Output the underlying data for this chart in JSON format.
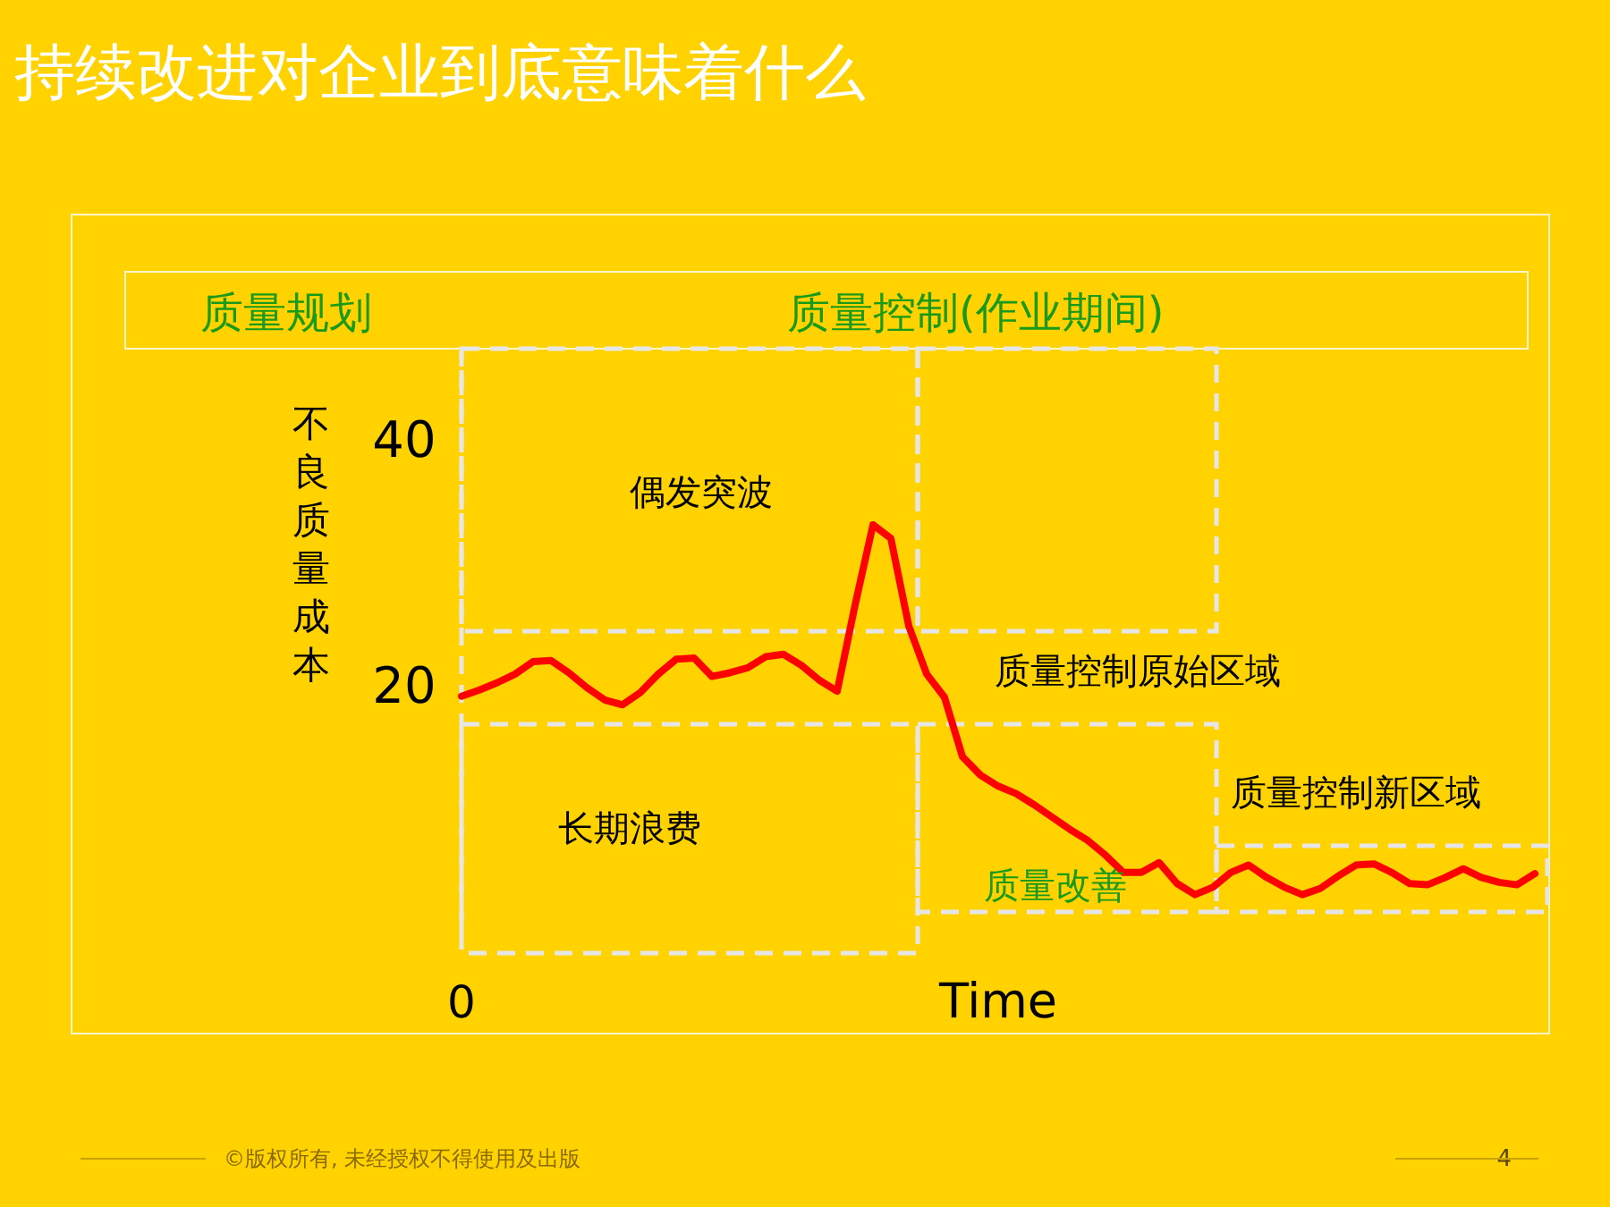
{
  "chart_data": {
    "type": "line",
    "title": "持续改进对企业到底意味着什么",
    "xlabel": "Time",
    "ylabel": "不良质量成本",
    "categories": [
      null,
      null,
      null,
      null,
      null,
      null,
      null,
      null,
      null,
      null,
      null,
      null,
      null,
      null,
      null,
      null,
      null,
      null,
      null,
      null,
      null,
      null,
      null,
      null,
      null,
      null,
      null,
      null,
      null,
      null,
      null,
      null,
      null,
      null,
      null,
      null,
      null,
      null,
      null,
      null,
      null,
      null,
      null,
      null,
      null,
      null,
      null,
      null,
      null,
      null,
      null,
      null,
      null,
      null,
      null,
      null,
      null,
      null,
      null,
      null,
      null
    ],
    "series": [
      {
        "color": "#ff0000",
        "values": [
          19.1,
          19.6,
          20.2,
          20.9,
          21.9,
          22.0,
          21.0,
          19.8,
          18.8,
          18.4,
          19.4,
          20.9,
          22.1,
          22.2,
          20.7,
          21.0,
          21.4,
          22.3,
          22.5,
          21.6,
          20.4,
          19.5,
          26.5,
          33.0,
          31.9,
          24.8,
          20.9,
          19.0,
          14.2,
          12.7,
          11.8,
          11.2,
          10.3,
          9.3,
          8.3,
          7.4,
          6.2,
          4.8,
          4.8,
          5.6,
          3.9,
          3.0,
          3.6,
          4.8,
          5.4,
          4.4,
          3.6,
          3.0,
          3.5,
          4.5,
          5.4,
          5.5,
          4.8,
          3.9,
          3.8,
          4.4,
          5.1,
          4.4,
          4.0,
          3.8,
          4.7
        ]
      }
    ],
    "ylim": [
      0,
      47
    ],
    "yticks": [
      20,
      40
    ],
    "grid": false,
    "tick_labels": "y",
    "line_style": "solid",
    "marker": "none",
    "annotations": [
      "质量规划",
      "质量控制(作业期间)",
      "偶发突波",
      "质量控制原始区域",
      "长期浪费",
      "质量控制新区域",
      "质量改善",
      "0",
      "©版权所有, 未经授权不得使用及出版",
      "4"
    ]
  }
}
